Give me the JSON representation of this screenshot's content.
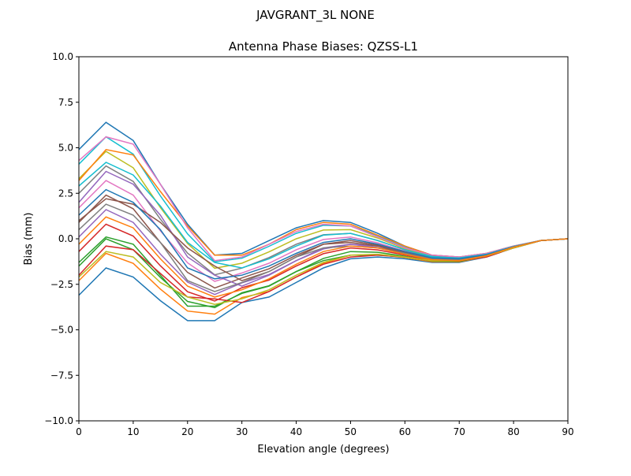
{
  "chart_data": {
    "type": "line",
    "suptitle": "JAVGRANT_3L     NONE",
    "title": "Antenna Phase Biases: QZSS-L1",
    "xlabel": "Elevation angle (degrees)",
    "ylabel": "Bias (mm)",
    "xlim": [
      0,
      90
    ],
    "ylim": [
      -10,
      10
    ],
    "xticks": [
      0,
      10,
      20,
      30,
      40,
      50,
      60,
      70,
      80,
      90
    ],
    "xtick_labels": [
      "0",
      "10",
      "20",
      "30",
      "40",
      "50",
      "60",
      "70",
      "80",
      "90"
    ],
    "yticks": [
      -10,
      -7.5,
      -5,
      -2.5,
      0,
      2.5,
      5,
      7.5,
      10
    ],
    "ytick_labels": [
      "−10.0",
      "−7.5",
      "−5.0",
      "−2.5",
      "0.0",
      "2.5",
      "5.0",
      "7.5",
      "10.0"
    ],
    "grid": false,
    "colors": [
      "#1f77b4",
      "#ff7f0e",
      "#2ca02c",
      "#d62728",
      "#9467bd",
      "#8c564b",
      "#e377c2",
      "#7f7f7f",
      "#bcbd22",
      "#17becf"
    ],
    "x": [
      0,
      5,
      10,
      15,
      20,
      25,
      30,
      35,
      40,
      45,
      50,
      55,
      60,
      65,
      70,
      75,
      80,
      85,
      90
    ],
    "series": [
      {
        "values": [
          -3.1,
          -1.6,
          -2.1,
          -3.4,
          -4.5,
          -4.5,
          -3.5,
          -3.2,
          -2.4,
          -1.6,
          -1.1,
          -1.0,
          -1.1,
          -1.3,
          -1.3,
          -1.0,
          -0.5,
          -0.1,
          0
        ]
      },
      {
        "values": [
          -2.3,
          -0.8,
          -1.35,
          -2.76,
          -3.97,
          -4.14,
          -3.23,
          -2.89,
          -2.1,
          -1.34,
          -0.9,
          -0.87,
          -1.03,
          -1.26,
          -1.27,
          -0.98,
          -0.49,
          -0.1,
          0
        ]
      },
      {
        "values": [
          -1.5,
          0.0,
          -0.6,
          -2.12,
          -3.44,
          -3.78,
          -2.96,
          -2.58,
          -1.8,
          -1.08,
          -0.7,
          -0.74,
          -0.96,
          -1.22,
          -1.24,
          -0.96,
          -0.48,
          -0.1,
          0
        ]
      },
      {
        "values": [
          -0.7,
          0.8,
          0.15,
          -1.48,
          -2.91,
          -3.42,
          -2.69,
          -2.27,
          -1.5,
          -0.82,
          -0.5,
          -0.61,
          -0.89,
          -1.18,
          -1.21,
          -0.94,
          -0.47,
          -0.1,
          0
        ]
      },
      {
        "values": [
          0.1,
          1.6,
          0.9,
          -0.84,
          -2.38,
          -3.06,
          -2.42,
          -1.96,
          -1.2,
          -0.56,
          -0.3,
          -0.48,
          -0.82,
          -1.14,
          -1.18,
          -0.92,
          -0.46,
          -0.1,
          0
        ]
      },
      {
        "values": [
          0.9,
          2.4,
          1.65,
          -0.2,
          -1.85,
          -2.7,
          -2.15,
          -1.65,
          -0.9,
          -0.3,
          -0.1,
          -0.35,
          -0.75,
          -1.1,
          -1.15,
          -0.9,
          -0.45,
          -0.1,
          0
        ]
      },
      {
        "values": [
          1.7,
          3.2,
          2.4,
          0.44,
          -1.32,
          -2.34,
          -1.88,
          -1.34,
          -0.6,
          -0.04,
          0.1,
          -0.22,
          -0.68,
          -1.06,
          -1.12,
          -0.88,
          -0.44,
          -0.1,
          0
        ]
      },
      {
        "values": [
          2.5,
          4.0,
          3.15,
          1.08,
          -0.79,
          -1.98,
          -1.61,
          -1.03,
          -0.3,
          0.22,
          0.3,
          -0.09,
          -0.61,
          -1.02,
          -1.09,
          -0.86,
          -0.43,
          -0.1,
          0
        ]
      },
      {
        "values": [
          3.3,
          4.8,
          3.9,
          1.72,
          -0.26,
          -1.62,
          -1.34,
          -0.72,
          0.0,
          0.48,
          0.5,
          0.04,
          -0.54,
          -0.98,
          -1.06,
          -0.84,
          -0.42,
          -0.1,
          0
        ]
      },
      {
        "values": [
          4.1,
          5.6,
          4.65,
          2.36,
          0.27,
          -1.26,
          -1.07,
          -0.41,
          0.3,
          0.74,
          0.7,
          0.17,
          -0.47,
          -0.94,
          -1.03,
          -0.82,
          -0.41,
          -0.1,
          0
        ]
      },
      {
        "values": [
          4.9,
          6.4,
          5.4,
          3.0,
          0.8,
          -0.9,
          -0.8,
          -0.1,
          0.6,
          1.0,
          0.9,
          0.3,
          -0.4,
          -0.9,
          -1.0,
          -0.8,
          -0.4,
          -0.1,
          0
        ]
      },
      {
        "values": [
          3.2,
          4.9,
          4.6,
          2.6,
          0.7,
          -0.9,
          -0.9,
          -0.3,
          0.5,
          0.9,
          0.8,
          0.2,
          -0.4,
          -0.9,
          -1.0,
          -0.8,
          -0.4,
          -0.1,
          0
        ]
      },
      {
        "values": [
          -1.3,
          0.1,
          -0.3,
          -2.0,
          -3.7,
          -3.7,
          -3.0,
          -2.6,
          -1.8,
          -1.2,
          -0.9,
          -0.9,
          -1.0,
          -1.2,
          -1.2,
          -0.95,
          -0.5,
          -0.1,
          0
        ]
      },
      {
        "values": [
          -2.0,
          -0.4,
          -0.6,
          -1.9,
          -3.2,
          -3.3,
          -3.5,
          -2.9,
          -2.1,
          -1.4,
          -1.0,
          -0.9,
          -1.0,
          -1.2,
          -1.2,
          -1.0,
          -0.5,
          -0.1,
          0
        ]
      },
      {
        "values": [
          2.0,
          3.7,
          3.0,
          1.3,
          -1.0,
          -2.0,
          -2.6,
          -2.0,
          -1.2,
          -0.5,
          -0.3,
          -0.4,
          -0.8,
          -1.1,
          -1.15,
          -0.9,
          -0.45,
          -0.1,
          0
        ]
      },
      {
        "values": [
          1.0,
          2.2,
          1.9,
          0.9,
          -0.5,
          -1.5,
          -2.3,
          -1.8,
          -1.0,
          -0.3,
          -0.2,
          -0.4,
          -0.8,
          -1.1,
          -1.15,
          -0.9,
          -0.45,
          -0.1,
          0
        ]
      },
      {
        "values": [
          4.3,
          5.6,
          5.2,
          3.0,
          0.6,
          -1.2,
          -1.0,
          -0.3,
          0.4,
          0.8,
          0.7,
          0.1,
          -0.5,
          -0.9,
          -1.0,
          -0.8,
          -0.4,
          -0.1,
          0
        ]
      },
      {
        "values": [
          0.5,
          1.9,
          1.3,
          -0.2,
          -2.3,
          -2.9,
          -2.4,
          -1.8,
          -1.0,
          -0.5,
          -0.4,
          -0.5,
          -0.8,
          -1.1,
          -1.15,
          -0.9,
          -0.45,
          -0.1,
          0
        ]
      },
      {
        "values": [
          -2.1,
          -0.7,
          -1.0,
          -2.4,
          -3.2,
          -3.6,
          -3.3,
          -2.8,
          -2.0,
          -1.3,
          -0.9,
          -0.85,
          -1.0,
          -1.2,
          -1.2,
          -0.95,
          -0.5,
          -0.1,
          0
        ]
      },
      {
        "values": [
          2.9,
          4.2,
          3.5,
          1.8,
          -0.2,
          -1.3,
          -1.6,
          -1.1,
          -0.4,
          0.2,
          0.3,
          -0.1,
          -0.6,
          -1.0,
          -1.05,
          -0.85,
          -0.42,
          -0.1,
          0
        ]
      },
      {
        "values": [
          1.3,
          2.7,
          2.0,
          0.5,
          -1.6,
          -2.2,
          -2.0,
          -1.5,
          -0.8,
          -0.2,
          0.0,
          -0.3,
          -0.7,
          -1.05,
          -1.1,
          -0.88,
          -0.44,
          -0.1,
          0
        ]
      },
      {
        "values": [
          -0.3,
          1.2,
          0.6,
          -1.1,
          -2.6,
          -3.2,
          -2.8,
          -2.2,
          -1.4,
          -0.7,
          -0.4,
          -0.5,
          -0.85,
          -1.15,
          -1.2,
          -0.93,
          -0.46,
          -0.1,
          0
        ]
      }
    ]
  }
}
